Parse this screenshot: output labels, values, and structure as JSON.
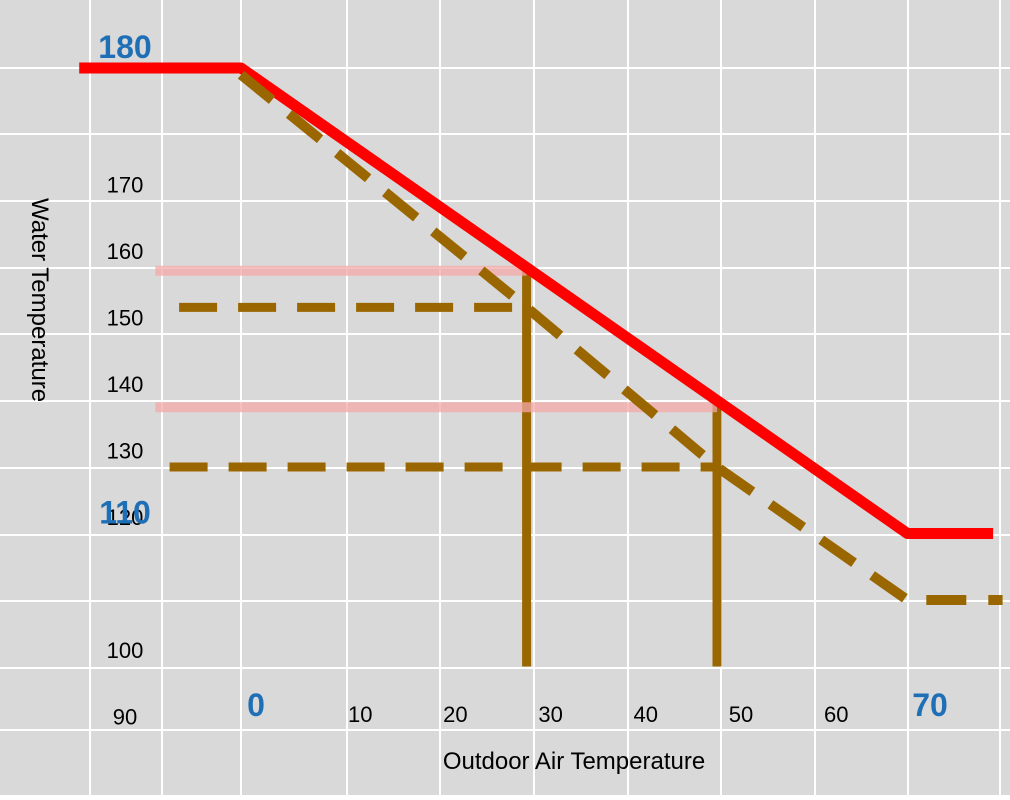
{
  "chart_data": {
    "type": "line",
    "title": "",
    "xlabel": "Outdoor Air Temperature",
    "ylabel": "Water Temperature",
    "x_ticks": [
      {
        "value": 0,
        "label": "0",
        "emphasis": true
      },
      {
        "value": 10,
        "label": "10",
        "emphasis": false
      },
      {
        "value": 20,
        "label": "20",
        "emphasis": false
      },
      {
        "value": 30,
        "label": "30",
        "emphasis": false
      },
      {
        "value": 40,
        "label": "40",
        "emphasis": false
      },
      {
        "value": 50,
        "label": "50",
        "emphasis": false
      },
      {
        "value": 60,
        "label": "60",
        "emphasis": false
      },
      {
        "value": 70,
        "label": "70",
        "emphasis": true
      }
    ],
    "y_ticks": [
      {
        "value": 180,
        "label": "180",
        "emphasis": true
      },
      {
        "value": 170,
        "label": "170",
        "emphasis": false
      },
      {
        "value": 160,
        "label": "160",
        "emphasis": false
      },
      {
        "value": 150,
        "label": "150",
        "emphasis": false
      },
      {
        "value": 140,
        "label": "140",
        "emphasis": false
      },
      {
        "value": 130,
        "label": "130",
        "emphasis": false
      },
      {
        "value": 120,
        "label": "120",
        "emphasis": false
      },
      {
        "value": 110,
        "label": "110",
        "emphasis": true
      },
      {
        "value": 100,
        "label": "100",
        "emphasis": false
      },
      {
        "value": 90,
        "label": "90",
        "emphasis": false
      }
    ],
    "grid": true,
    "background_color": "#d9d9d9",
    "grid_color": "#ffffff",
    "series": [
      {
        "style": "solid",
        "color": "#ff0000",
        "points": [
          [
            -17,
            180
          ],
          [
            0,
            180
          ],
          [
            30,
            150
          ],
          [
            50,
            130
          ],
          [
            70,
            110
          ],
          [
            79,
            110
          ]
        ]
      },
      {
        "style": "dashed",
        "color": "#996600",
        "points": [
          [
            0,
            179
          ],
          [
            30,
            144
          ],
          [
            50,
            120
          ],
          [
            70,
            100
          ],
          [
            80,
            100
          ]
        ]
      }
    ],
    "reference_lines": [
      {
        "style": "solid",
        "color": "#996600",
        "points": [
          [
            30,
            90
          ],
          [
            30,
            149.5
          ]
        ]
      },
      {
        "style": "solid",
        "color": "#996600",
        "points": [
          [
            50,
            90
          ],
          [
            50,
            130
          ]
        ]
      },
      {
        "style": "dashed",
        "color": "#996600",
        "points": [
          [
            -6.5,
            144
          ],
          [
            30,
            144
          ]
        ]
      },
      {
        "style": "dashed",
        "color": "#996600",
        "points": [
          [
            -7.5,
            120
          ],
          [
            50,
            120
          ]
        ]
      },
      {
        "style": "faint",
        "color": "#f4a8a8",
        "points": [
          [
            -9,
            149.5
          ],
          [
            30,
            149.5
          ]
        ]
      },
      {
        "style": "faint",
        "color": "#f4a8a8",
        "points": [
          [
            -9,
            129
          ],
          [
            50,
            129
          ]
        ]
      }
    ]
  }
}
